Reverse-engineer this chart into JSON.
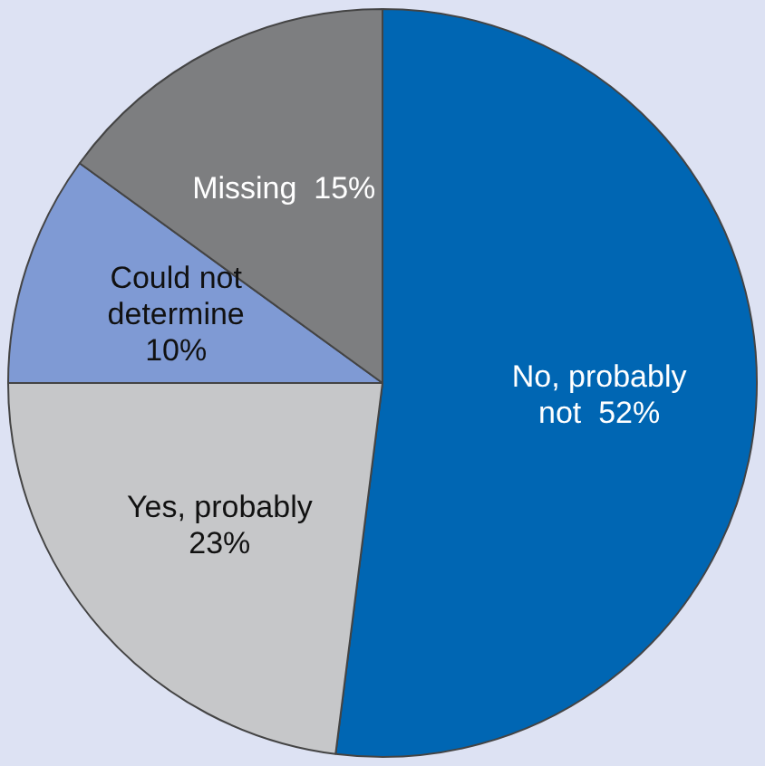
{
  "chart_data": {
    "type": "pie",
    "categories": [
      "No, probably not",
      "Yes, probably",
      "Could not determine",
      "Missing"
    ],
    "values": [
      52,
      23,
      10,
      15
    ],
    "colors": [
      "#0066b3",
      "#c6c7c9",
      "#7f9ad4",
      "#7d7e80"
    ],
    "value_labels": [
      "52%",
      "23%",
      "10%",
      "15%"
    ],
    "legend": false
  }
}
